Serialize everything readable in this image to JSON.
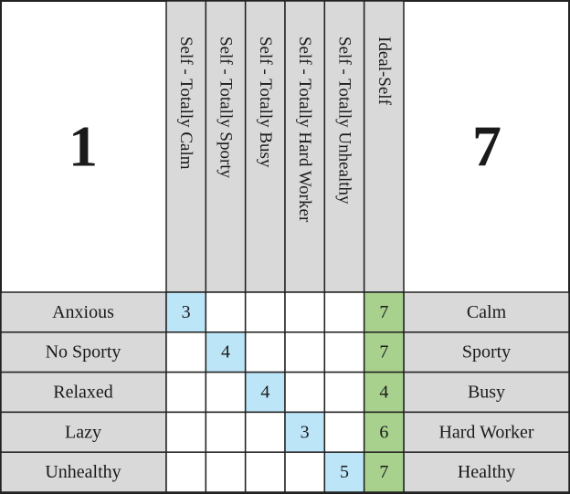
{
  "header": {
    "left": "1",
    "right": "7",
    "columns": [
      "Self - Totally Calm",
      "Self - Totally Sporty",
      "Self - Totally Busy",
      "Self - Totally Hard Worker",
      "Self - Totally Unhealthy",
      "Ideal-Self"
    ]
  },
  "table": {
    "rows": [
      {
        "left": "Anxious",
        "right": "Calm",
        "cells": [
          3,
          null,
          null,
          null,
          null,
          7
        ]
      },
      {
        "left": "No Sporty",
        "right": "Sporty",
        "cells": [
          null,
          4,
          null,
          null,
          null,
          7
        ]
      },
      {
        "left": "Relaxed",
        "right": "Busy",
        "cells": [
          null,
          null,
          4,
          null,
          null,
          4
        ]
      },
      {
        "left": "Lazy",
        "right": "Hard Worker",
        "cells": [
          null,
          null,
          null,
          3,
          null,
          6
        ]
      },
      {
        "left": "Unhealthy",
        "right": "Healthy",
        "cells": [
          null,
          null,
          null,
          null,
          5,
          7
        ]
      }
    ]
  }
}
